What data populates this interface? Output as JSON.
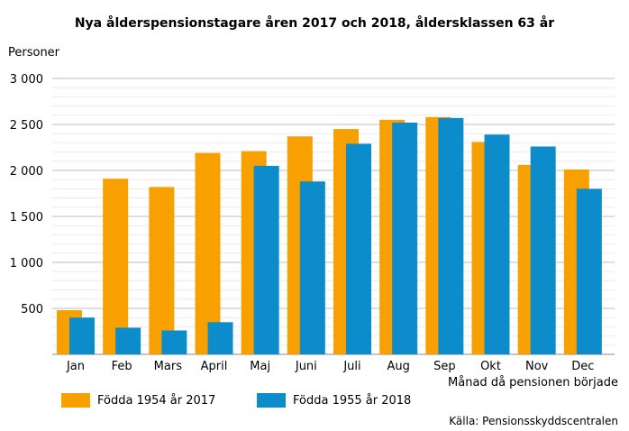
{
  "chart_data": {
    "type": "bar",
    "title": "Nya ålderspensionstagare åren 2017 och 2018, åldersklassen 63 år",
    "ylabel": "Personer",
    "xlabel": "Månad då pensionen började",
    "source": "Källa: Pensionsskyddscentralen",
    "ylim": [
      0,
      3000
    ],
    "yticks": [
      500,
      1000,
      1500,
      2000,
      2500,
      3000
    ],
    "ytick_labels": [
      "500",
      "1 000",
      "1 500",
      "2 000",
      "2 500",
      "3 000"
    ],
    "categories": [
      "Jan",
      "Feb",
      "Mars",
      "April",
      "Maj",
      "Juni",
      "Juli",
      "Aug",
      "Sep",
      "Okt",
      "Nov",
      "Dec"
    ],
    "series": [
      {
        "name": "Födda 1954 år 2017",
        "color": "#f7a000",
        "values": [
          480,
          1910,
          1820,
          2190,
          2210,
          2370,
          2450,
          2550,
          2580,
          2310,
          2060,
          2010
        ]
      },
      {
        "name": "Födda 1955 år 2018",
        "color": "#0d8ccc",
        "values": [
          400,
          290,
          260,
          350,
          2050,
          1880,
          2290,
          2520,
          2570,
          2390,
          2260,
          1800
        ]
      }
    ],
    "grid": true,
    "legend_position": "bottom-left"
  }
}
